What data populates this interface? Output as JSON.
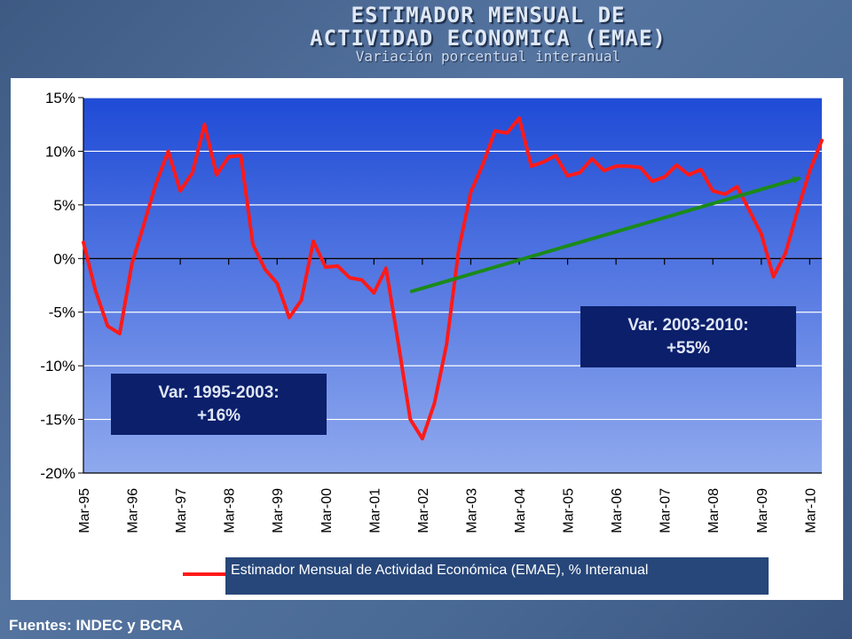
{
  "slide": {
    "title_line1": "ESTIMADOR MENSUAL DE",
    "title_line2": "ACTIVIDAD ECONOMICA (EMAE)",
    "subtitle": "Variación porcentual interanual",
    "source": "Fuentes: INDEC y BCRA"
  },
  "notes": {
    "left_line1": "Var. 1995-2003:",
    "left_line2": "+16%",
    "right_line1": "Var. 2003-2010:",
    "right_line2": "+55%"
  },
  "colors": {
    "series": "#ff1a1a",
    "trend": "#1a8a1a",
    "plot_bg_top": "#1f4bd6",
    "plot_bg_bottom": "#8fa9ee"
  },
  "chart_data": {
    "type": "line",
    "title": "ESTIMADOR MENSUAL DE ACTIVIDAD ECONOMICA (EMAE)",
    "subtitle": "Variación porcentual interanual",
    "xlabel": "",
    "ylabel": "",
    "ylim": [
      -20,
      15
    ],
    "yticks": [
      15,
      10,
      5,
      0,
      -5,
      -10,
      -15,
      -20
    ],
    "ytick_labels": [
      "15%",
      "10%",
      "5%",
      "0%",
      "-5%",
      "-10%",
      "-15%",
      "-20%"
    ],
    "xlim": [
      1995.0,
      2010.25
    ],
    "xticks": [
      1995,
      1996,
      1997,
      1998,
      1999,
      2000,
      2001,
      2002,
      2003,
      2004,
      2005,
      2006,
      2007,
      2008,
      2009,
      2010
    ],
    "xtick_labels": [
      "Mar-95",
      "Mar-96",
      "Mar-97",
      "Mar-98",
      "Mar-99",
      "Mar-00",
      "Mar-01",
      "Mar-02",
      "Mar-03",
      "Mar-04",
      "Mar-05",
      "Mar-06",
      "Mar-07",
      "Mar-08",
      "Mar-09",
      "Mar-10"
    ],
    "grid": true,
    "legend": "bottom",
    "series": [
      {
        "name": "Estimador Mensual de Actividad Económica (EMAE), % Interanual",
        "x": [
          1995.0,
          1995.25,
          1995.5,
          1995.75,
          1996.0,
          1996.25,
          1996.5,
          1996.75,
          1997.0,
          1997.25,
          1997.5,
          1997.75,
          1998.0,
          1998.25,
          1998.5,
          1998.75,
          1999.0,
          1999.25,
          1999.5,
          1999.75,
          2000.0,
          2000.25,
          2000.5,
          2000.75,
          2001.0,
          2001.25,
          2001.5,
          2001.75,
          2002.0,
          2002.25,
          2002.5,
          2002.75,
          2003.0,
          2003.25,
          2003.5,
          2003.75,
          2004.0,
          2004.25,
          2004.5,
          2004.75,
          2005.0,
          2005.25,
          2005.5,
          2005.75,
          2006.0,
          2006.25,
          2006.5,
          2006.75,
          2007.0,
          2007.25,
          2007.5,
          2007.75,
          2008.0,
          2008.25,
          2008.5,
          2008.75,
          2009.0,
          2009.25,
          2009.5,
          2009.75,
          2010.0,
          2010.25
        ],
        "values": [
          1.5,
          -3.0,
          -6.3,
          -7.0,
          -0.5,
          3.2,
          7.0,
          10.0,
          6.3,
          8.0,
          12.5,
          7.8,
          9.5,
          9.6,
          1.3,
          -1.0,
          -2.3,
          -5.5,
          -3.9,
          1.6,
          -0.8,
          -0.7,
          -1.8,
          -2.0,
          -3.2,
          -0.9,
          -7.8,
          -15.0,
          -16.8,
          -13.5,
          -8.0,
          0.8,
          6.2,
          8.8,
          11.9,
          11.7,
          13.1,
          8.6,
          9.0,
          9.6,
          7.7,
          8.0,
          9.3,
          8.2,
          8.6,
          8.6,
          8.5,
          7.2,
          7.6,
          8.7,
          7.8,
          8.3,
          6.3,
          6.0,
          6.7,
          4.5,
          2.3,
          -1.7,
          0.5,
          4.5,
          8.2,
          11.0
        ]
      }
    ],
    "annotations": [
      {
        "label": "trend-arrow",
        "x_start": 2001.75,
        "y_start": -3.1,
        "x_end": 2009.8,
        "y_end": 7.5
      }
    ]
  },
  "legend": {
    "label": "Estimador Mensual de Actividad Económica (EMAE), % Interanual"
  }
}
